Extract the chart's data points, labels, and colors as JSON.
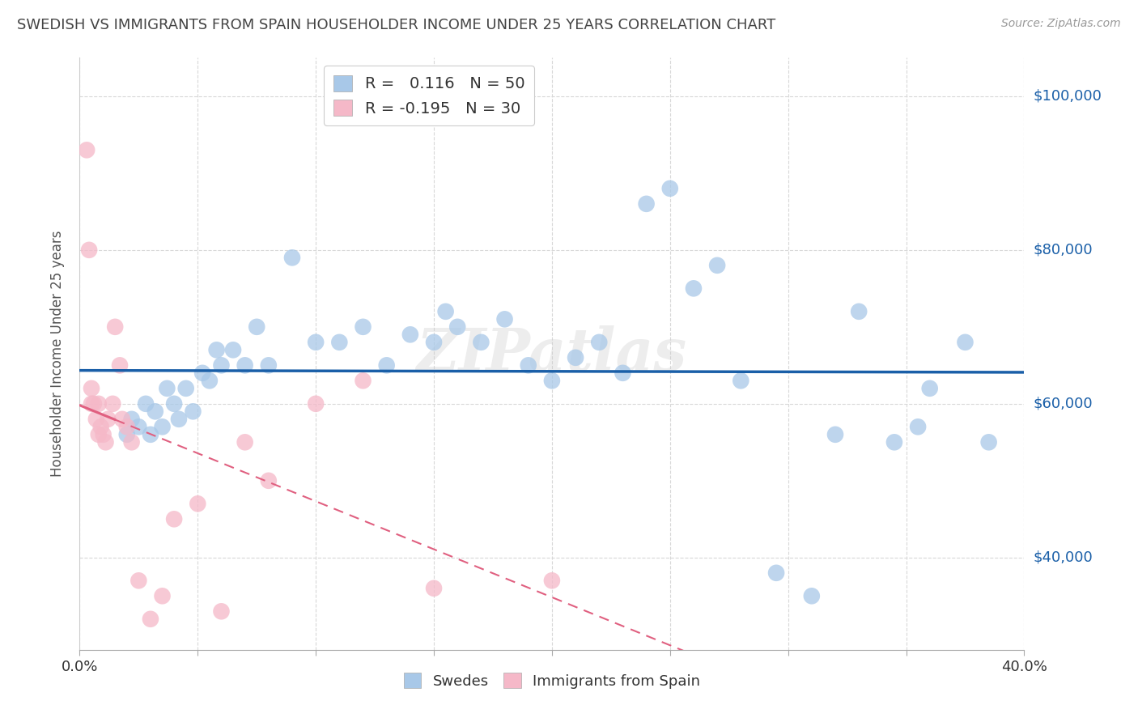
{
  "title": "SWEDISH VS IMMIGRANTS FROM SPAIN HOUSEHOLDER INCOME UNDER 25 YEARS CORRELATION CHART",
  "source": "Source: ZipAtlas.com",
  "ylabel": "Householder Income Under 25 years",
  "xlim": [
    0.0,
    0.4
  ],
  "ylim": [
    28000,
    105000
  ],
  "xticks": [
    0.0,
    0.05,
    0.1,
    0.15,
    0.2,
    0.25,
    0.3,
    0.35,
    0.4
  ],
  "ytick_values": [
    40000,
    60000,
    80000,
    100000
  ],
  "ytick_labels": [
    "$40,000",
    "$60,000",
    "$80,000",
    "$100,000"
  ],
  "blue_color": "#a8c8e8",
  "pink_color": "#f5b8c8",
  "blue_line_color": "#1a5fa8",
  "pink_line_color": "#e06080",
  "R_blue": 0.116,
  "N_blue": 50,
  "R_pink": -0.195,
  "N_pink": 30,
  "swedes_x": [
    0.02,
    0.022,
    0.025,
    0.028,
    0.03,
    0.032,
    0.035,
    0.037,
    0.04,
    0.042,
    0.045,
    0.048,
    0.052,
    0.055,
    0.058,
    0.06,
    0.065,
    0.07,
    0.075,
    0.08,
    0.09,
    0.1,
    0.11,
    0.12,
    0.13,
    0.14,
    0.15,
    0.155,
    0.16,
    0.17,
    0.18,
    0.19,
    0.2,
    0.21,
    0.22,
    0.23,
    0.24,
    0.25,
    0.26,
    0.27,
    0.28,
    0.295,
    0.31,
    0.32,
    0.33,
    0.345,
    0.355,
    0.36,
    0.375,
    0.385
  ],
  "swedes_y": [
    56000,
    58000,
    57000,
    60000,
    56000,
    59000,
    57000,
    62000,
    60000,
    58000,
    62000,
    59000,
    64000,
    63000,
    67000,
    65000,
    67000,
    65000,
    70000,
    65000,
    79000,
    68000,
    68000,
    70000,
    65000,
    69000,
    68000,
    72000,
    70000,
    68000,
    71000,
    65000,
    63000,
    66000,
    68000,
    64000,
    86000,
    88000,
    75000,
    78000,
    63000,
    38000,
    35000,
    56000,
    72000,
    55000,
    57000,
    62000,
    68000,
    55000
  ],
  "spain_x": [
    0.003,
    0.004,
    0.005,
    0.005,
    0.006,
    0.007,
    0.008,
    0.008,
    0.009,
    0.01,
    0.011,
    0.012,
    0.014,
    0.015,
    0.017,
    0.018,
    0.02,
    0.022,
    0.025,
    0.03,
    0.035,
    0.04,
    0.05,
    0.06,
    0.07,
    0.08,
    0.1,
    0.12,
    0.15,
    0.2
  ],
  "spain_y": [
    93000,
    80000,
    62000,
    60000,
    60000,
    58000,
    56000,
    60000,
    57000,
    56000,
    55000,
    58000,
    60000,
    70000,
    65000,
    58000,
    57000,
    55000,
    37000,
    32000,
    35000,
    45000,
    47000,
    33000,
    55000,
    50000,
    60000,
    63000,
    36000,
    37000
  ],
  "watermark": "ZIPatlas",
  "background_color": "#ffffff",
  "grid_color": "#d8d8d8"
}
